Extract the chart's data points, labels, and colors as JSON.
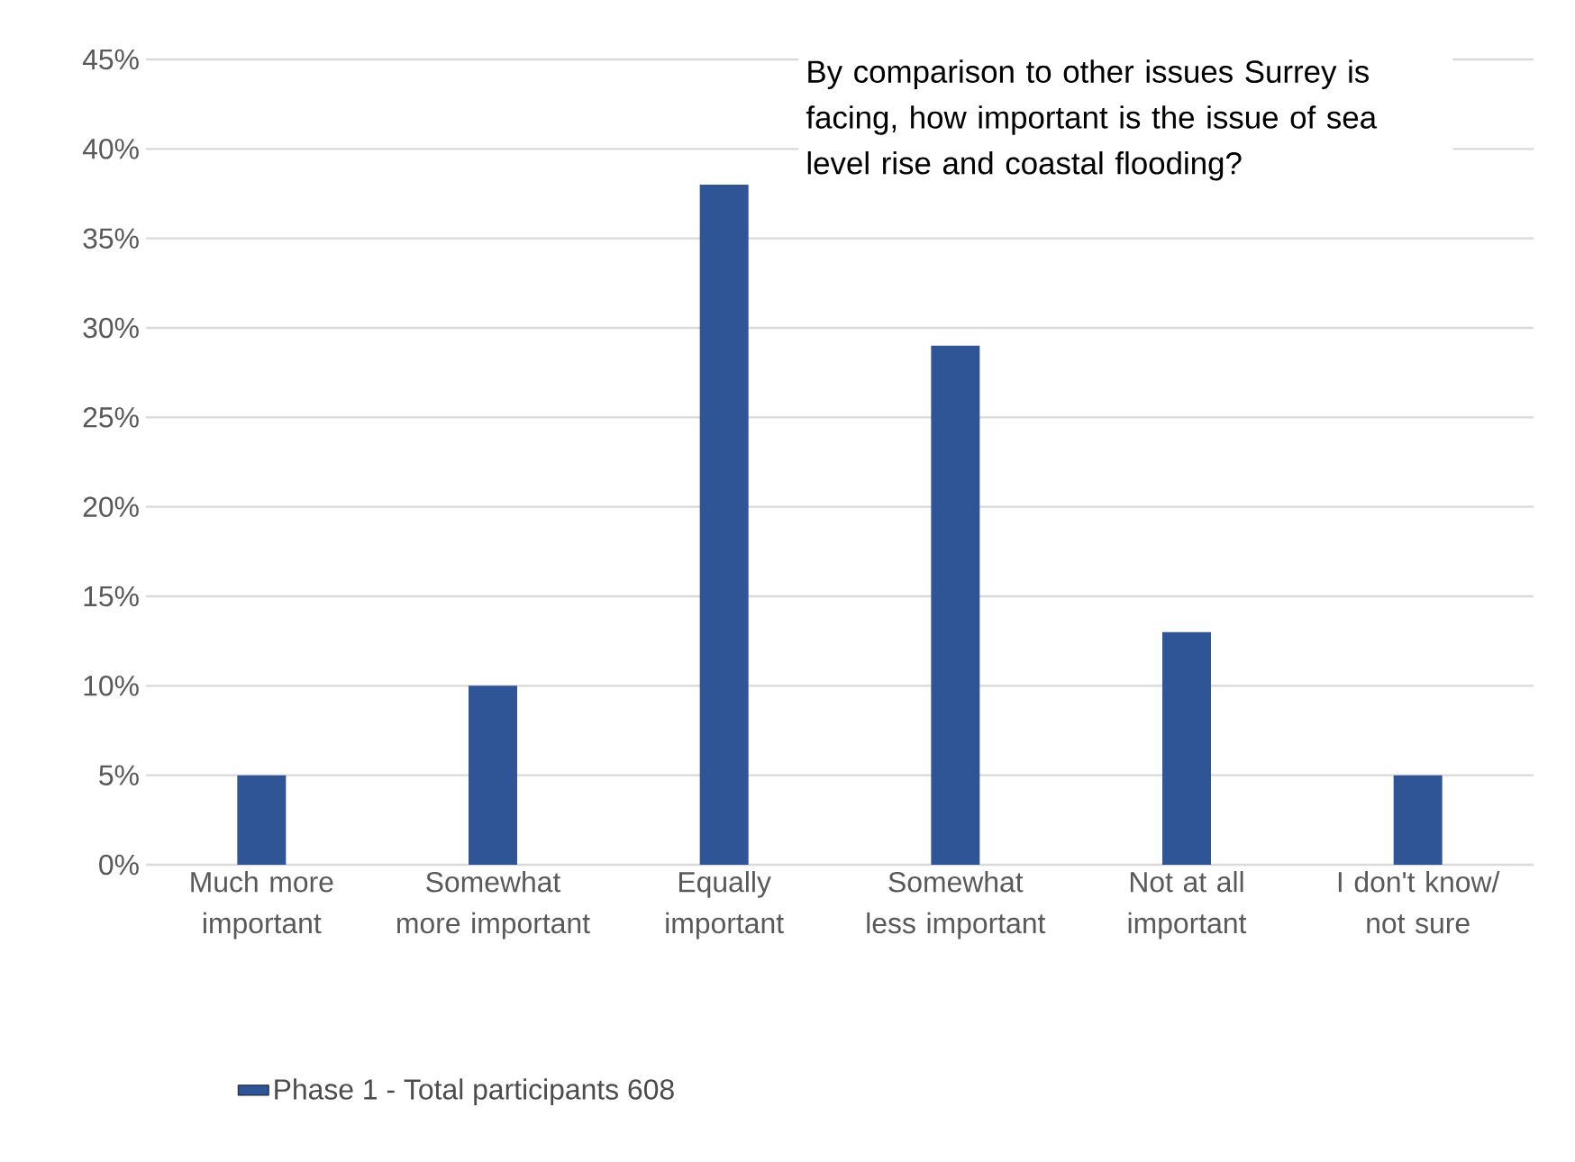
{
  "chart_data": {
    "type": "bar",
    "title": "By comparison to other issues Surrey is facing, how important is the issue of sea level rise and coastal flooding?",
    "categories": [
      "Much more important",
      "Somewhat more important",
      "Equally important",
      "Somewhat less important",
      "Not at all important",
      "I don't know/ not sure"
    ],
    "series": [
      {
        "name": "Phase 1 - Total participants 608",
        "color": "#2f5597",
        "values": [
          5,
          10,
          38,
          29,
          13,
          5
        ]
      }
    ],
    "ylim": [
      0,
      45
    ],
    "yticks": [
      {
        "value": 0,
        "label": "0%"
      },
      {
        "value": 5,
        "label": "5%"
      },
      {
        "value": 10,
        "label": "10%"
      },
      {
        "value": 15,
        "label": "15%"
      },
      {
        "value": 20,
        "label": "20%"
      },
      {
        "value": 25,
        "label": "25%"
      },
      {
        "value": 30,
        "label": "30%"
      },
      {
        "value": 35,
        "label": "35%"
      },
      {
        "value": 40,
        "label": "40%"
      },
      {
        "value": 45,
        "label": "45%"
      }
    ],
    "grid": "y",
    "legend": "bottom left"
  }
}
